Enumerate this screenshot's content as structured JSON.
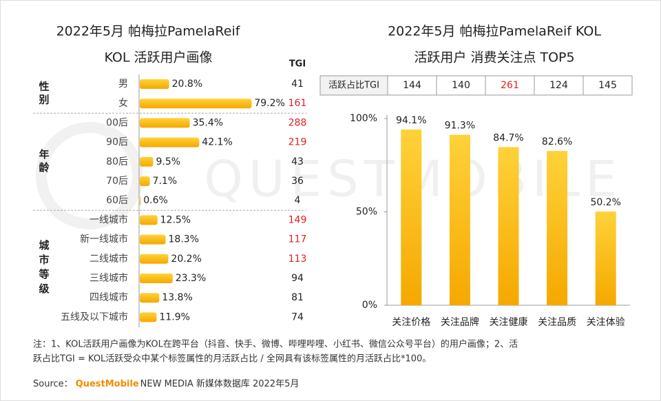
{
  "chart_data": [
    {
      "type": "hbar",
      "title": "2022年5月 帕梅拉PamelaReif",
      "subtitle": "KOL 活跃用户画像",
      "tgi_header": "TGI",
      "color": "#FFC000",
      "tgi_highlight_color": "#E02020",
      "groups": [
        {
          "name": "性别",
          "categories": [
            "男",
            "女"
          ],
          "values": [
            20.8,
            79.2
          ],
          "value_labels": [
            "20.8%",
            "79.2%"
          ],
          "tgi": [
            41,
            161
          ],
          "tgi_highlight": [
            false,
            true
          ]
        },
        {
          "name": "年龄",
          "categories": [
            "00后",
            "90后",
            "80后",
            "70后",
            "60后"
          ],
          "values": [
            35.4,
            42.1,
            9.5,
            7.1,
            0.6
          ],
          "value_labels": [
            "35.4%",
            "42.1%",
            "9.5%",
            "7.1%",
            "0.6%"
          ],
          "tgi": [
            288,
            219,
            43,
            36,
            4
          ],
          "tgi_highlight": [
            true,
            true,
            false,
            false,
            false
          ]
        },
        {
          "name": "城市等级",
          "categories": [
            "一线城市",
            "新一线城市",
            "二线城市",
            "三线城市",
            "四线城市",
            "五线及以下城市"
          ],
          "values": [
            12.5,
            18.3,
            20.2,
            23.3,
            13.8,
            11.9
          ],
          "value_labels": [
            "12.5%",
            "18.3%",
            "20.2%",
            "23.3%",
            "13.8%",
            "11.9%"
          ],
          "tgi": [
            149,
            117,
            113,
            94,
            81,
            74
          ],
          "tgi_highlight": [
            true,
            true,
            true,
            false,
            false,
            false
          ]
        }
      ]
    },
    {
      "type": "bar",
      "title": "2022年5月 帕梅拉PamelaReif KOL",
      "subtitle": "活跃用户 消费关注点 TOP5",
      "tgi_header": "活跃占比TGI",
      "tgi": [
        144,
        140,
        261,
        124,
        145
      ],
      "tgi_highlight": [
        false,
        false,
        true,
        false,
        false
      ],
      "tgi_highlight_color": "#E02020",
      "color": "#FFC000",
      "categories": [
        "关注价格",
        "关注品牌",
        "关注健康",
        "关注品质",
        "关注体验"
      ],
      "values": [
        94.1,
        91.3,
        84.7,
        82.6,
        50.2
      ],
      "value_labels": [
        "94.1%",
        "91.3%",
        "84.7%",
        "82.6%",
        "50.2%"
      ],
      "ylim": [
        0,
        100
      ],
      "yticks": [
        {
          "value": 0,
          "label": "0%"
        },
        {
          "value": 50,
          "label": "50%"
        },
        {
          "value": 100,
          "label": "100%"
        }
      ]
    }
  ],
  "watermark": "QUESTMOBILE",
  "footer": {
    "note": [
      "注：1、KOL活跃用户画像为KOL在跨平台（抖音、快手、微博、哔哩哔哩、小红书、微信公众号平台）的用户画像；2、活",
      "跃占比TGI = KOL活跃受众中某个标签属性的月活跃占比 / 全网具有该标签属性的月活跃占比*100。"
    ],
    "source_prefix": "Source：",
    "source_brand": "QuestMobile",
    "source_text": "NEW MEDIA 新媒体数据库 2022年5月"
  }
}
